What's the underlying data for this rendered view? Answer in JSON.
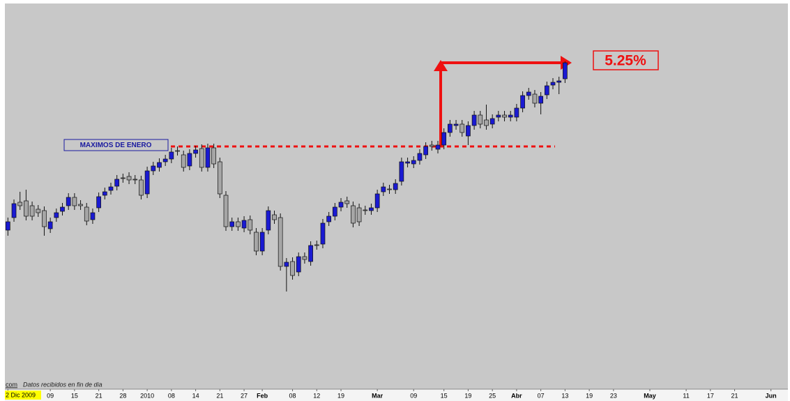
{
  "chart_data": {
    "type": "candlestick",
    "open": [
      230,
      248,
      270,
      272,
      265,
      260,
      258,
      232,
      248,
      257,
      265,
      277,
      267,
      263,
      245,
      262,
      280,
      287,
      293,
      305,
      307,
      303,
      302,
      282,
      315,
      320,
      328,
      332,
      344,
      338,
      322,
      340,
      347,
      320,
      348,
      328,
      280,
      235,
      242,
      233,
      245,
      227,
      200,
      230,
      252,
      248,
      178,
      185,
      170,
      192,
      185,
      209,
      210,
      242,
      250,
      263,
      272,
      265,
      262,
      259,
      258,
      262,
      285,
      289,
      288,
      300,
      326,
      325,
      330,
      338,
      352,
      346,
      352,
      370,
      380,
      382,
      365,
      380,
      395,
      388,
      382,
      392,
      395,
      392,
      392,
      405,
      423,
      425,
      412,
      424,
      438,
      442,
      447
    ],
    "high": [
      248,
      274,
      285,
      288,
      271,
      266,
      264,
      248,
      261,
      269,
      283,
      283,
      273,
      269,
      261,
      284,
      291,
      298,
      309,
      311,
      313,
      309,
      308,
      321,
      328,
      333,
      338,
      348,
      350,
      344,
      346,
      351,
      353,
      354,
      354,
      334,
      286,
      248,
      248,
      250,
      251,
      233,
      233,
      264,
      258,
      254,
      190,
      191,
      198,
      198,
      214,
      215,
      246,
      256,
      269,
      276,
      278,
      271,
      268,
      265,
      268,
      288,
      298,
      295,
      303,
      334,
      334,
      336,
      346,
      356,
      358,
      358,
      376,
      388,
      388,
      388,
      386,
      401,
      401,
      410,
      396,
      401,
      401,
      401,
      411,
      429,
      434,
      431,
      428,
      443,
      448,
      450,
      472
    ],
    "low": [
      222,
      242,
      259,
      244,
      244,
      249,
      222,
      226,
      242,
      251,
      259,
      259,
      259,
      237,
      239,
      256,
      274,
      281,
      287,
      298,
      296,
      296,
      274,
      276,
      309,
      314,
      322,
      326,
      337,
      314,
      316,
      334,
      314,
      314,
      319,
      276,
      229,
      229,
      229,
      227,
      224,
      194,
      194,
      224,
      239,
      172,
      142,
      159,
      164,
      182,
      179,
      202,
      204,
      236,
      244,
      257,
      262,
      234,
      236,
      252,
      252,
      256,
      279,
      282,
      282,
      294,
      320,
      319,
      324,
      332,
      344,
      340,
      346,
      364,
      374,
      364,
      352,
      374,
      376,
      374,
      376,
      386,
      386,
      386,
      386,
      399,
      417,
      406,
      396,
      418,
      432,
      425,
      441
    ],
    "close": [
      242,
      268,
      265,
      250,
      250,
      255,
      235,
      242,
      255,
      263,
      277,
      265,
      265,
      243,
      255,
      278,
      285,
      292,
      303,
      304,
      302,
      302,
      280,
      315,
      322,
      327,
      332,
      342,
      343,
      320,
      340,
      345,
      320,
      348,
      325,
      282,
      235,
      242,
      235,
      244,
      230,
      200,
      227,
      258,
      245,
      178,
      184,
      165,
      192,
      188,
      208,
      208,
      240,
      250,
      263,
      270,
      268,
      240,
      242,
      258,
      262,
      282,
      292,
      288,
      297,
      328,
      328,
      330,
      340,
      350,
      350,
      352,
      370,
      382,
      382,
      370,
      380,
      395,
      382,
      380,
      390,
      395,
      392,
      395,
      405,
      423,
      428,
      412,
      422,
      437,
      442,
      444,
      470
    ],
    "up_color": "#1a1ad2",
    "down_color": "#a6a6a6",
    "ylim": [
      2,
      555
    ],
    "xlim": [
      -0.5,
      128.8
    ],
    "xticks": [
      {
        "value": 0,
        "label": "2 Dic 2009"
      },
      {
        "value": 7,
        "label": "09"
      },
      {
        "value": 11,
        "label": "15"
      },
      {
        "value": 15,
        "label": "21"
      },
      {
        "value": 19,
        "label": "28"
      },
      {
        "value": 23,
        "label": "2010"
      },
      {
        "value": 27,
        "label": "08"
      },
      {
        "value": 31,
        "label": "14"
      },
      {
        "value": 35,
        "label": "21"
      },
      {
        "value": 39,
        "label": "27"
      },
      {
        "value": 42,
        "label": "Feb"
      },
      {
        "value": 47,
        "label": "08"
      },
      {
        "value": 51,
        "label": "12"
      },
      {
        "value": 55,
        "label": "19"
      },
      {
        "value": 61,
        "label": "Mar"
      },
      {
        "value": 67,
        "label": "09"
      },
      {
        "value": 72,
        "label": "15"
      },
      {
        "value": 76,
        "label": "19"
      },
      {
        "value": 80,
        "label": "25"
      },
      {
        "value": 84,
        "label": "Abr"
      },
      {
        "value": 88,
        "label": "07"
      },
      {
        "value": 92,
        "label": "13"
      },
      {
        "value": 96,
        "label": "19"
      },
      {
        "value": 100,
        "label": "23"
      },
      {
        "value": 106,
        "label": "May"
      },
      {
        "value": 112,
        "label": "11"
      },
      {
        "value": 116,
        "label": "17"
      },
      {
        "value": 120,
        "label": "21"
      },
      {
        "value": 126,
        "label": "Jun"
      }
    ],
    "annotations": [
      "MAXIMOS DE ENERO",
      "5.25%"
    ],
    "source_prefix": "com",
    "source": "Datos recibidos en fin de dia"
  }
}
